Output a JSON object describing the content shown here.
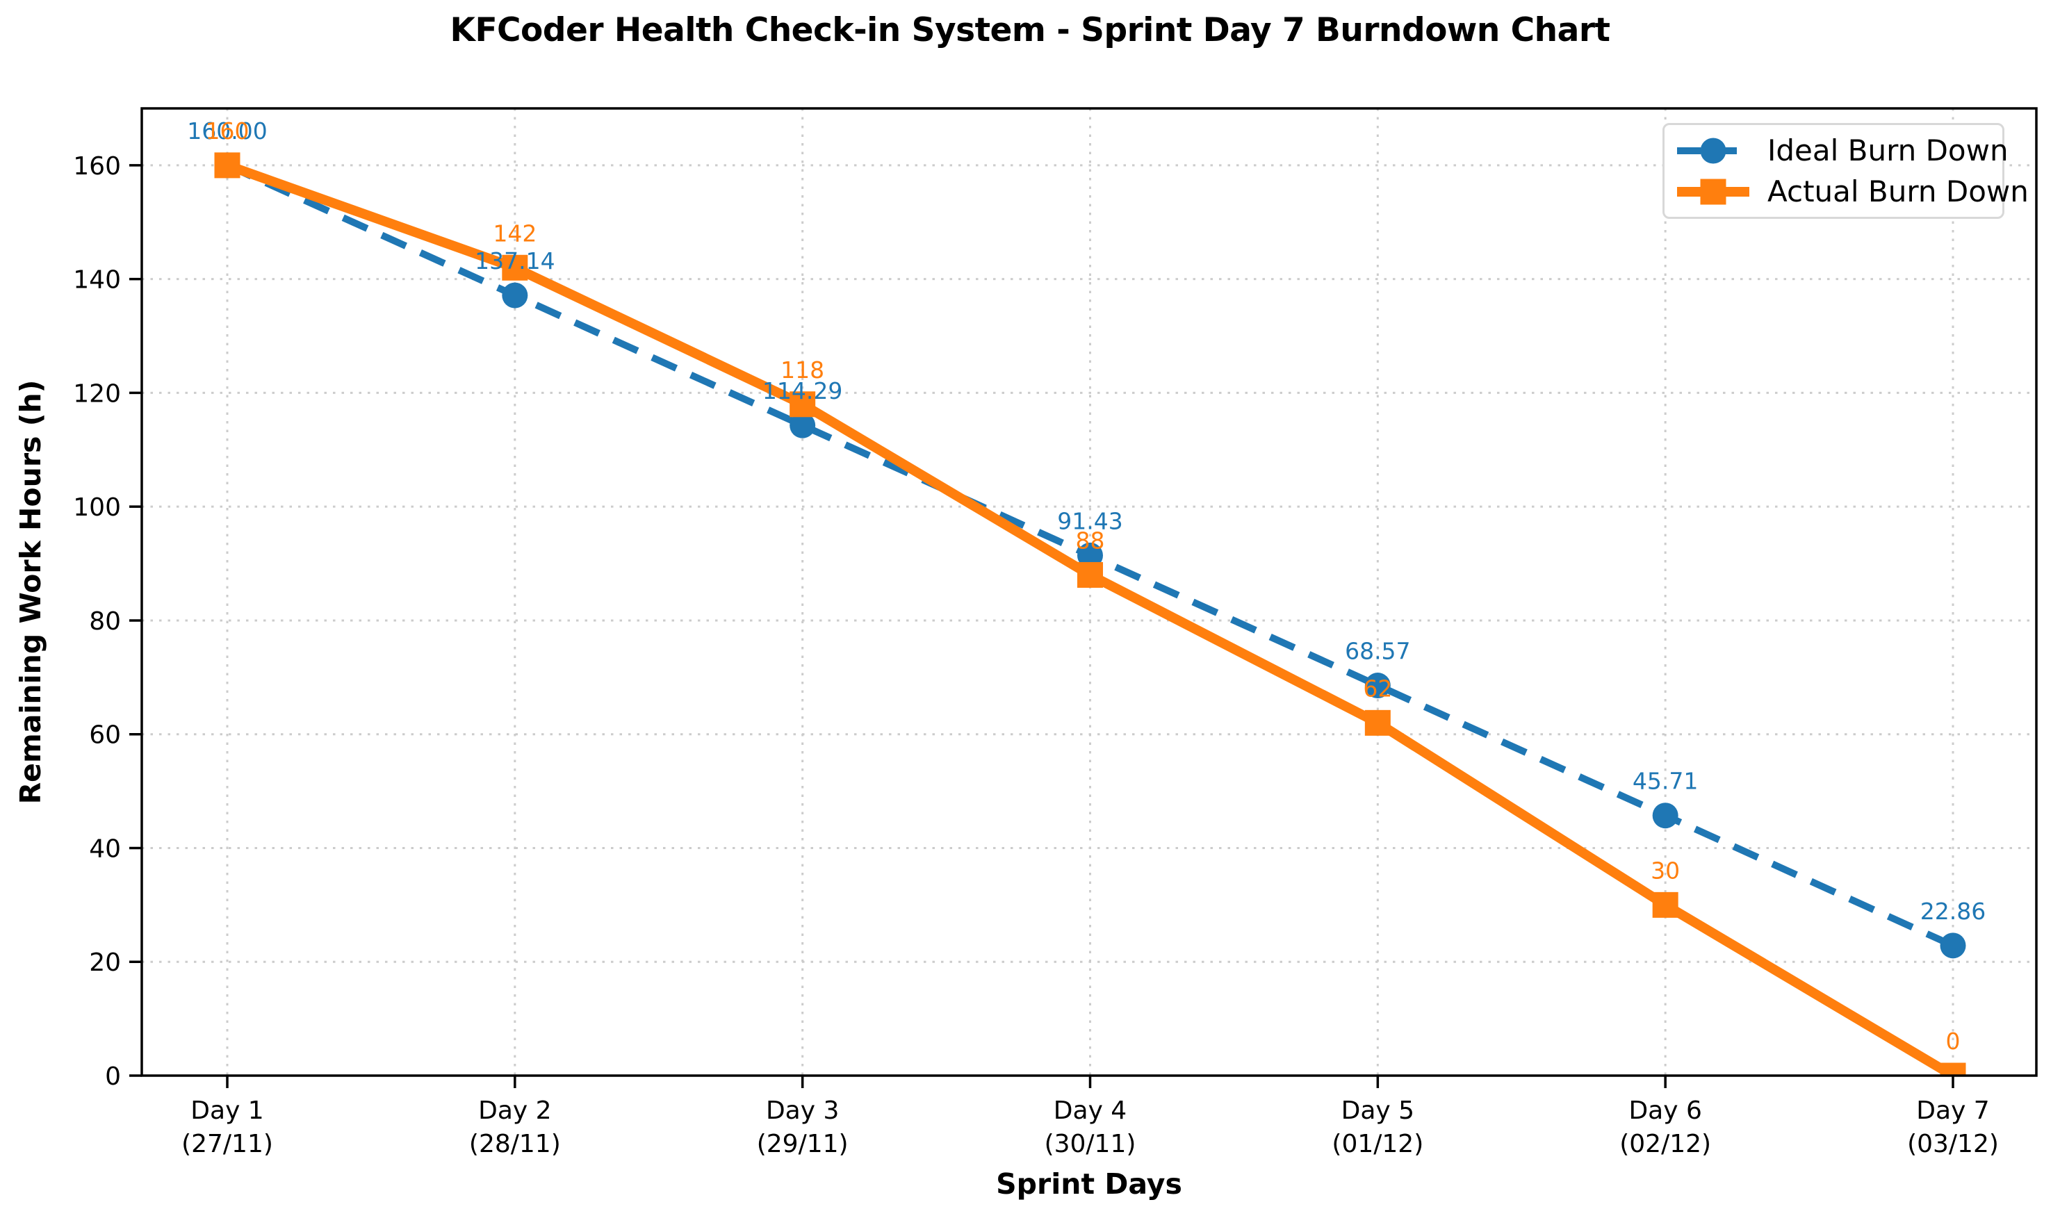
{
  "chart_data": {
    "type": "line",
    "title": "KFCoder Health Check-in System - Sprint Day 7 Burndown Chart",
    "xlabel": "Sprint Days",
    "ylabel": "Remaining Work Hours (h)",
    "ylim": [
      0,
      170
    ],
    "yticks": [
      0,
      20,
      40,
      60,
      80,
      100,
      120,
      140,
      160
    ],
    "categories": [
      {
        "day": "Day 1",
        "date": "(27/11)"
      },
      {
        "day": "Day 2",
        "date": "(28/11)"
      },
      {
        "day": "Day 3",
        "date": "(29/11)"
      },
      {
        "day": "Day 4",
        "date": "(30/11)"
      },
      {
        "day": "Day 5",
        "date": "(01/12)"
      },
      {
        "day": "Day 6",
        "date": "(02/12)"
      },
      {
        "day": "Day 7",
        "date": "(03/12)"
      }
    ],
    "series": [
      {
        "name": "Ideal Burn Down",
        "color": "#1f77b4",
        "line_style": "dashed",
        "marker": "circle",
        "values": [
          160.0,
          137.14,
          114.29,
          91.43,
          68.57,
          45.71,
          22.86
        ],
        "point_labels": [
          "160.00",
          "137.14",
          "114.29",
          "91.43",
          "68.57",
          "45.71",
          "22.86"
        ]
      },
      {
        "name": "Actual Burn Down",
        "color": "#ff7f0e",
        "line_style": "solid",
        "marker": "square",
        "values": [
          160,
          142,
          118,
          88,
          62,
          30,
          0
        ],
        "point_labels": [
          "160",
          "142",
          "118",
          "88",
          "62",
          "30",
          "0"
        ]
      }
    ],
    "grid": true,
    "grid_color": "#cccccc",
    "legend_position": "upper right"
  }
}
